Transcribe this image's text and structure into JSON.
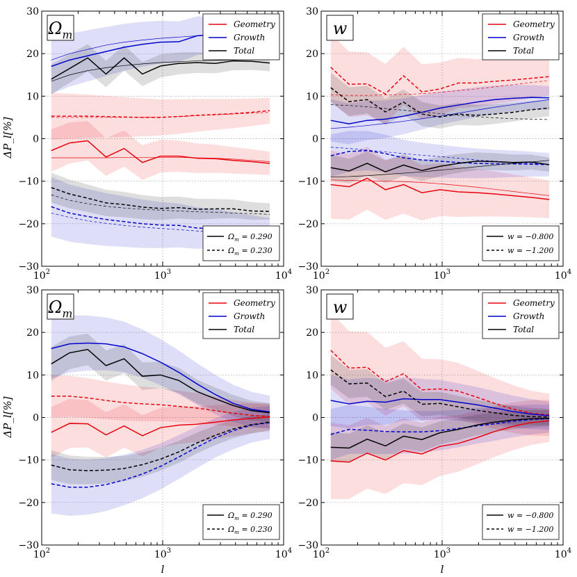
{
  "figure": {
    "y_axis_label": "ΔP_l[%]",
    "x_axis_label": "l"
  },
  "chart_data": [
    {
      "type": "line",
      "panel": "top-left",
      "param_label": "Ω_m",
      "xscale": "log",
      "xlim": [
        100,
        10000
      ],
      "ylim": [
        -30,
        30
      ],
      "yticks": [
        -30,
        -20,
        -10,
        0,
        10,
        20,
        30
      ],
      "xtick_labels": [
        "10^2",
        "10^3",
        "10^4"
      ],
      "grid": true,
      "legend_series": [
        {
          "name": "Geometry",
          "color": "#e8000b"
        },
        {
          "name": "Growth",
          "color": "#0000cc"
        },
        {
          "name": "Total",
          "color": "#000000"
        }
      ],
      "legend_styles": [
        {
          "label": "Ω_m = 0.290",
          "dash": "solid"
        },
        {
          "label": "Ω_m = 0.230",
          "dash": "dashed"
        }
      ],
      "x": [
        120,
        170,
        240,
        340,
        480,
        680,
        960,
        1360,
        1920,
        2720,
        3840,
        5430,
        7680
      ],
      "series": [
        {
          "name": "Geometry",
          "variant": "Ω_m = 0.290",
          "color": "#e8000b",
          "dash": "solid",
          "values": [
            -2.8,
            -1,
            -0.5,
            -4.3,
            -2.3,
            -5.6,
            -4.1,
            -4.1,
            -4.6,
            -4.7,
            -5.1,
            -5.4,
            -5.8
          ],
          "band": 5,
          "theory": [
            -4.5,
            -4.5,
            -4.5,
            -4.5,
            -4.4,
            -4.4,
            -4.4,
            -4.4,
            -4.5,
            -4.6,
            -4.8,
            -5.1,
            -5.4
          ]
        },
        {
          "name": "Geometry",
          "variant": "Ω_m = 0.230",
          "color": "#e8000b",
          "dash": "dashed",
          "values": [
            5.3,
            5.3,
            5.3,
            5.2,
            5.1,
            5,
            5,
            5.2,
            5.5,
            5.7,
            5.9,
            6.2,
            6.6
          ],
          "band": 5.5,
          "theory": [
            5,
            5,
            5,
            5,
            5,
            5,
            5.1,
            5.2,
            5.4,
            5.6,
            5.8,
            6,
            6.2
          ]
        },
        {
          "name": "Growth",
          "variant": "Ω_m = 0.290",
          "color": "#0000cc",
          "dash": "solid",
          "values": [
            17,
            18.5,
            19.5,
            20.5,
            21.5,
            22.2,
            22.7,
            22.8,
            24.2,
            24.5,
            24.6,
            24.8,
            25
          ],
          "band": 6.5,
          "theory": [
            18.5,
            20,
            21,
            22,
            22.7,
            23.2,
            23.6,
            23.9,
            24.2,
            24.4,
            24.7,
            24.9,
            25.1
          ]
        },
        {
          "name": "Growth",
          "variant": "Ω_m = 0.230",
          "color": "#0000cc",
          "dash": "dashed",
          "values": [
            -16,
            -17.5,
            -18.3,
            -19,
            -19.5,
            -20,
            -20.3,
            -20.4,
            -21,
            -21.2,
            -21.6,
            -22.1,
            -22.5
          ],
          "band": 7,
          "theory": [
            -17.5,
            -18.5,
            -19.3,
            -19.9,
            -20.4,
            -20.8,
            -21.1,
            -21.4,
            -21.7,
            -22,
            -22.3,
            -22.6,
            -22.9
          ]
        },
        {
          "name": "Total",
          "variant": "Ω_m = 0.290",
          "color": "#000000",
          "dash": "solid",
          "values": [
            14,
            16.5,
            19,
            15.2,
            19,
            15.2,
            17.1,
            17.7,
            17.9,
            17.7,
            18.3,
            18.2,
            17.8
          ],
          "band": 3.5,
          "theory": [
            13.5,
            15,
            16,
            16.7,
            17.2,
            17.6,
            17.9,
            18.1,
            18.3,
            18.4,
            18.5,
            18.6,
            18.7
          ]
        },
        {
          "name": "Total",
          "variant": "Ω_m = 0.230",
          "color": "#000000",
          "dash": "dashed",
          "values": [
            -11.5,
            -13,
            -14,
            -15.1,
            -15.5,
            -16.1,
            -16.4,
            -16.2,
            -16.6,
            -16.5,
            -16.5,
            -17,
            -17.1
          ],
          "band": 3.5,
          "theory": [
            -13.2,
            -14.5,
            -15.3,
            -15.9,
            -16.3,
            -16.6,
            -16.8,
            -17,
            -17.2,
            -17.3,
            -17.5,
            -17.6,
            -17.8
          ]
        }
      ]
    },
    {
      "type": "line",
      "panel": "top-right",
      "param_label": "w",
      "xscale": "log",
      "xlim": [
        100,
        10000
      ],
      "ylim": [
        -30,
        30
      ],
      "yticks": [
        -30,
        -20,
        -10,
        0,
        10,
        20,
        30
      ],
      "xtick_labels": [
        "10^2",
        "10^3",
        "10^4"
      ],
      "grid": true,
      "legend_series": [
        {
          "name": "Geometry",
          "color": "#e8000b"
        },
        {
          "name": "Growth",
          "color": "#0000cc"
        },
        {
          "name": "Total",
          "color": "#000000"
        }
      ],
      "legend_styles": [
        {
          "label": "w = −0.800",
          "dash": "solid"
        },
        {
          "label": "w = −1.200",
          "dash": "dashed"
        }
      ],
      "x": [
        120,
        170,
        240,
        340,
        480,
        680,
        960,
        1360,
        1920,
        2720,
        3840,
        5430,
        7680
      ],
      "series": [
        {
          "name": "Geometry",
          "variant": "w = −0.800",
          "color": "#e8000b",
          "dash": "solid",
          "values": [
            -10.8,
            -11.3,
            -9.3,
            -12,
            -10.8,
            -12.7,
            -12,
            -12.5,
            -12.7,
            -13,
            -13.4,
            -13.8,
            -14.3
          ],
          "band": 8,
          "theory": [
            -9.7,
            -9.8,
            -9.9,
            -10,
            -10.1,
            -10.3,
            -10.6,
            -11,
            -11.4,
            -11.9,
            -12.4,
            -12.9,
            -13.4
          ]
        },
        {
          "name": "Geometry",
          "variant": "w = −1.200",
          "color": "#e8000b",
          "dash": "dashed",
          "values": [
            16.8,
            12.8,
            12.9,
            10.5,
            14.8,
            11,
            11.7,
            13.1,
            13.1,
            13.5,
            13.8,
            14.2,
            14.6
          ],
          "band": 8,
          "theory": [
            10.3,
            10.2,
            10.2,
            10.3,
            10.4,
            10.6,
            10.9,
            11.3,
            11.7,
            12.2,
            12.7,
            13.2,
            13.7
          ]
        },
        {
          "name": "Growth",
          "variant": "w = −0.800",
          "color": "#0000cc",
          "dash": "dashed",
          "values": [
            -4,
            -3,
            -2.8,
            -3.5,
            -4.5,
            -5,
            -5.3,
            -5.6,
            -5.8,
            -5.9,
            -5.9,
            -6,
            -6.1
          ],
          "band": 5,
          "theory": [
            -2,
            -2.3,
            -2.7,
            -3.1,
            -3.5,
            -3.9,
            -4.2,
            -4.6,
            -5,
            -5.3,
            -5.6,
            -5.8,
            -6
          ]
        },
        {
          "name": "Growth",
          "variant": "w = −1.200",
          "color": "#0000cc",
          "dash": "solid",
          "values": [
            4.3,
            3.5,
            4.3,
            4.6,
            5.3,
            6.2,
            7.2,
            7.9,
            8.6,
            9.2,
            9.5,
            9.7,
            9.6
          ],
          "band": 5,
          "theory": [
            2.4,
            2.7,
            3.1,
            3.6,
            4.1,
            4.7,
            5.3,
            6,
            6.7,
            7.4,
            8,
            8.6,
            9.2
          ]
        },
        {
          "name": "Total",
          "variant": "w = −0.800",
          "color": "#000000",
          "dash": "solid",
          "values": [
            -6.8,
            -7.6,
            -5.8,
            -7.8,
            -6.2,
            -7.5,
            -6.5,
            -5.8,
            -5.3,
            -5.4,
            -5.6,
            -5.5,
            -6.1
          ],
          "band": 3,
          "theory": [
            -9,
            -8.9,
            -8.7,
            -8.4,
            -8.1,
            -7.8,
            -7.4,
            -7,
            -6.6,
            -6.2,
            -5.8,
            -5.5,
            -5.1
          ]
        },
        {
          "name": "Total",
          "variant": "w = −1.200",
          "color": "#000000",
          "dash": "dashed",
          "values": [
            12,
            8.7,
            9.2,
            6.3,
            8.6,
            5.8,
            5.1,
            5.8,
            5.5,
            5.8,
            6.2,
            6.8,
            7.2
          ],
          "band": 3.5,
          "theory": [
            8,
            7.8,
            7.5,
            7.1,
            6.7,
            6.3,
            5.9,
            5.5,
            5.2,
            4.9,
            4.7,
            4.6,
            4.5
          ]
        }
      ]
    },
    {
      "type": "line",
      "panel": "bottom-left",
      "param_label": "Ω_m",
      "xscale": "log",
      "xlim": [
        100,
        10000
      ],
      "ylim": [
        -30,
        30
      ],
      "yticks": [
        -30,
        -20,
        -10,
        0,
        10,
        20,
        30
      ],
      "xtick_labels": [
        "10^2",
        "10^3",
        "10^4"
      ],
      "grid": true,
      "legend_series": [
        {
          "name": "Geometry",
          "color": "#e8000b"
        },
        {
          "name": "Growth",
          "color": "#0000cc"
        },
        {
          "name": "Total",
          "color": "#000000"
        }
      ],
      "legend_styles": [
        {
          "label": "Ω_m = 0.290",
          "dash": "solid"
        },
        {
          "label": "Ω_m = 0.230",
          "dash": "dashed"
        }
      ],
      "x": [
        120,
        170,
        240,
        340,
        480,
        680,
        960,
        1360,
        1920,
        2720,
        3840,
        5430,
        7680
      ],
      "series": [
        {
          "name": "Geometry",
          "variant": "Ω_m = 0.290",
          "color": "#e8000b",
          "dash": "solid",
          "values": [
            -3.5,
            -1.4,
            -1.5,
            -4.1,
            -2,
            -4.3,
            -2.4,
            -1.8,
            -1.6,
            -1.1,
            -0.6,
            -0.2,
            0.1
          ],
          "band": 6
        },
        {
          "name": "Geometry",
          "variant": "Ω_m = 0.230",
          "color": "#e8000b",
          "dash": "dashed",
          "values": [
            5,
            5,
            4.6,
            4,
            3.5,
            3.2,
            3,
            2.6,
            2.2,
            1.6,
            1,
            0.5,
            0.2
          ],
          "band": 5
        },
        {
          "name": "Growth",
          "variant": "Ω_m = 0.290",
          "color": "#0000cc",
          "dash": "solid",
          "values": [
            16.2,
            17.3,
            17.5,
            17.3,
            16.6,
            15,
            13,
            10.6,
            7.9,
            5.4,
            3.3,
            1.9,
            1.3
          ],
          "band": 7
        },
        {
          "name": "Growth",
          "variant": "Ω_m = 0.230",
          "color": "#0000cc",
          "dash": "dashed",
          "values": [
            -15.6,
            -16.4,
            -16.4,
            -15.8,
            -14.7,
            -13.3,
            -11.5,
            -9.3,
            -7,
            -4.8,
            -3.1,
            -1.8,
            -1.2
          ],
          "band": 7
        },
        {
          "name": "Total",
          "variant": "Ω_m = 0.290",
          "color": "#000000",
          "dash": "solid",
          "values": [
            12.6,
            15.2,
            16,
            12.2,
            13.8,
            9.7,
            10,
            8.7,
            6.1,
            4.4,
            2.8,
            1.6,
            1.1
          ],
          "band": 4
        },
        {
          "name": "Total",
          "variant": "Ω_m = 0.230",
          "color": "#000000",
          "dash": "dashed",
          "values": [
            -11.2,
            -12.3,
            -12.5,
            -12.4,
            -12,
            -11.1,
            -9.8,
            -8.1,
            -6,
            -4.2,
            -2.7,
            -1.7,
            -1.1
          ],
          "band": 3.5
        }
      ]
    },
    {
      "type": "line",
      "panel": "bottom-right",
      "param_label": "w",
      "xscale": "log",
      "xlim": [
        100,
        10000
      ],
      "ylim": [
        -30,
        30
      ],
      "yticks": [
        -30,
        -20,
        -10,
        0,
        10,
        20,
        30
      ],
      "xtick_labels": [
        "10^2",
        "10^3",
        "10^4"
      ],
      "grid": true,
      "legend_series": [
        {
          "name": "Geometry",
          "color": "#e8000b"
        },
        {
          "name": "Growth",
          "color": "#0000cc"
        },
        {
          "name": "Total",
          "color": "#000000"
        }
      ],
      "legend_styles": [
        {
          "label": "w = −0.800",
          "dash": "solid"
        },
        {
          "label": "w = −1.200",
          "dash": "dashed"
        }
      ],
      "x": [
        120,
        170,
        240,
        340,
        480,
        680,
        960,
        1360,
        1920,
        2720,
        3840,
        5430,
        7680
      ],
      "series": [
        {
          "name": "Geometry",
          "variant": "w = −0.800",
          "color": "#e8000b",
          "dash": "solid",
          "values": [
            -10.2,
            -10.5,
            -8.4,
            -10,
            -7.8,
            -8.6,
            -6.8,
            -6.1,
            -4.8,
            -3.3,
            -2.1,
            -1.2,
            -0.8
          ],
          "band": 9
        },
        {
          "name": "Geometry",
          "variant": "w = −1.200",
          "color": "#e8000b",
          "dash": "dashed",
          "values": [
            15.8,
            11.6,
            11.8,
            8.4,
            10.3,
            6.5,
            6.7,
            6.2,
            4.8,
            3.3,
            2,
            1,
            0.6
          ],
          "band": 9
        },
        {
          "name": "Growth",
          "variant": "w = −0.800",
          "color": "#0000cc",
          "dash": "dashed",
          "values": [
            -4,
            -2.8,
            -3,
            -3.3,
            -3.4,
            -3.4,
            -3.1,
            -2.6,
            -2,
            -1.5,
            -0.9,
            -0.5,
            -0.3
          ],
          "band": 6
        },
        {
          "name": "Growth",
          "variant": "w = −1.200",
          "color": "#0000cc",
          "dash": "solid",
          "values": [
            4,
            3.2,
            3.8,
            3.6,
            4.4,
            4.2,
            4.2,
            3.6,
            3,
            2.2,
            1.4,
            0.8,
            0.4
          ],
          "band": 6
        },
        {
          "name": "Total",
          "variant": "w = −0.800",
          "color": "#000000",
          "dash": "solid",
          "values": [
            -7,
            -7.2,
            -5.1,
            -6.7,
            -4.4,
            -5.2,
            -3.6,
            -2.8,
            -1.8,
            -1.1,
            -0.6,
            -0.3,
            -0.2
          ],
          "band": 3.5
        },
        {
          "name": "Total",
          "variant": "w = −1.200",
          "color": "#000000",
          "dash": "dashed",
          "values": [
            11.2,
            7.9,
            8.1,
            4.9,
            6.2,
            3.1,
            3.3,
            2.5,
            1.7,
            1.1,
            0.5,
            0.2,
            0.1
          ],
          "band": 3.5
        }
      ]
    }
  ]
}
